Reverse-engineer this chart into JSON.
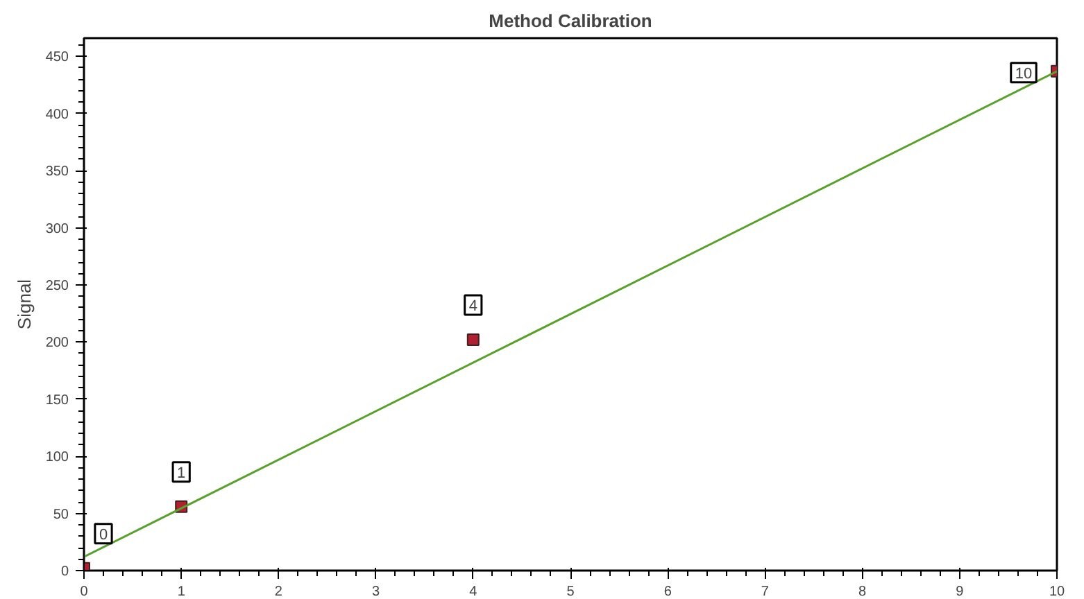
{
  "chart_data": {
    "type": "scatter",
    "title": "Method Calibration",
    "ylabel": "Signal",
    "series": [
      {
        "color": "#b02030",
        "x": [
          0,
          1,
          4,
          10
        ],
        "values": [
          2,
          56,
          202,
          437
        ],
        "marker": "square"
      },
      {
        "type": "line",
        "color": "#5aa02c",
        "x": [
          0,
          10
        ],
        "values": [
          12,
          437
        ],
        "marker": "none",
        "line_style": "solid"
      }
    ],
    "annotations": [
      {
        "text": "0",
        "x": 0,
        "y": 2
      },
      {
        "text": "1",
        "x": 1,
        "y": 56
      },
      {
        "text": "4",
        "x": 4,
        "y": 202
      },
      {
        "text": "10",
        "x": 10,
        "y": 437
      }
    ],
    "xlim": [
      0,
      10
    ],
    "ylim": [
      0,
      466
    ],
    "xticks": [
      0,
      1,
      2,
      3,
      4,
      5,
      6,
      7,
      8,
      9,
      10
    ],
    "yticks": [
      0,
      50,
      100,
      150,
      200,
      250,
      300,
      350,
      400,
      450
    ],
    "grid": false
  }
}
